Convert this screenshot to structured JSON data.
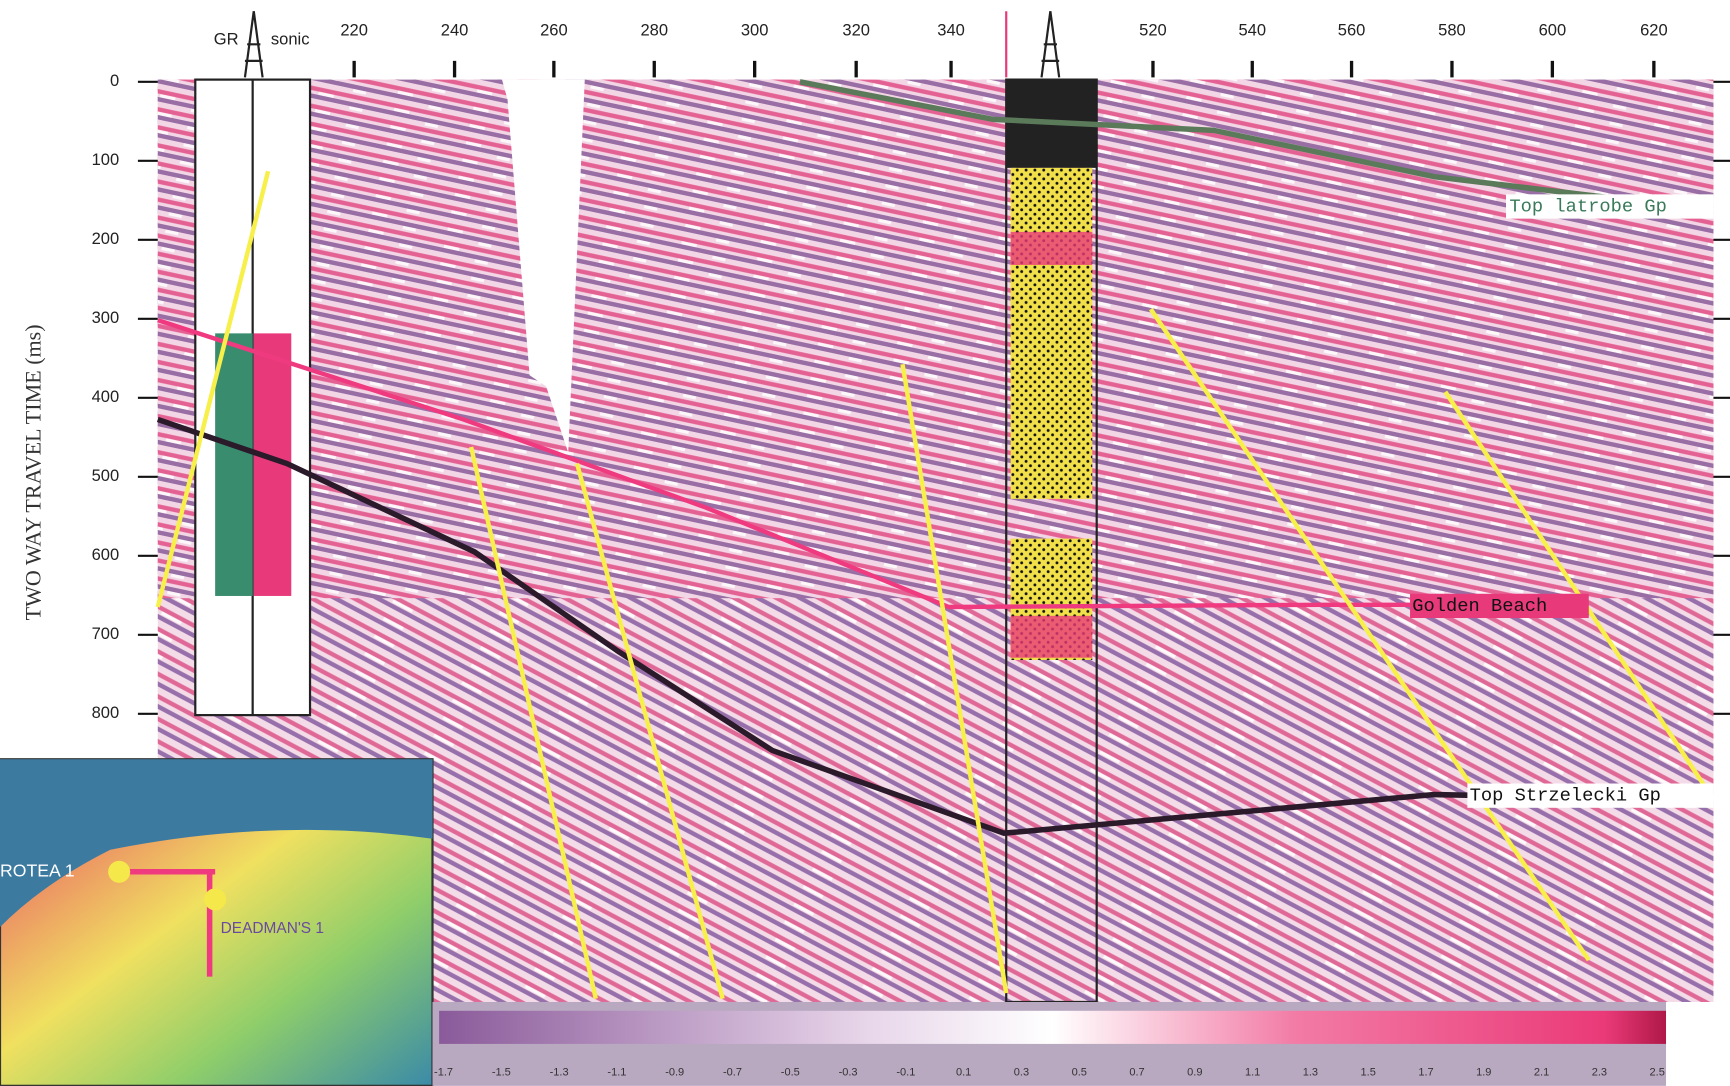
{
  "x_axis": {
    "ticks": [
      "220",
      "240",
      "260",
      "280",
      "300",
      "320",
      "340",
      "520",
      "540",
      "560",
      "580",
      "600",
      "620"
    ]
  },
  "y_axis": {
    "label": "TWO WAY TRAVEL TIME (ms)",
    "ticks": [
      "0",
      "100",
      "200",
      "300",
      "400",
      "500",
      "600",
      "700",
      "800"
    ]
  },
  "well_log": {
    "labels": [
      "GR",
      "sonic"
    ]
  },
  "horizons": [
    {
      "label": "Top latrobe Gp"
    },
    {
      "label": "Golden Beach"
    },
    {
      "label": "Top Strzelecki Gp"
    }
  ],
  "map": {
    "labels": [
      "ROTEA 1",
      "DEADMAN'S 1"
    ]
  },
  "colorbar": {
    "labels": [
      "-1.7",
      "-1.5",
      "-1.3",
      "-1.1",
      "-0.9",
      "-0.7",
      "-0.5",
      "-0.3",
      "-0.1",
      "0.1",
      "0.3",
      "0.5",
      "0.7",
      "0.9",
      "1.1",
      "1.3",
      "1.5",
      "1.7",
      "1.9",
      "2.1",
      "2.3",
      "2.5"
    ]
  }
}
